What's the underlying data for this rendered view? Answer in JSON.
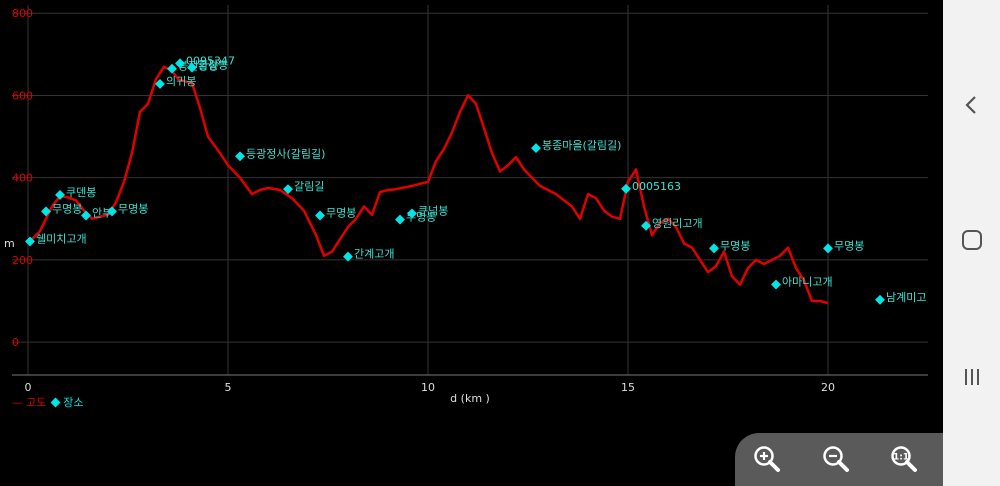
{
  "chart_data": {
    "type": "line",
    "xlabel": "d (km )",
    "ylabel": "m",
    "xlim": [
      0,
      22.5
    ],
    "ylim": [
      -80,
      820
    ],
    "xticks": [
      0,
      5,
      10,
      15,
      20
    ],
    "yticks": [
      0,
      200,
      400,
      600,
      800
    ],
    "grid": true,
    "legend": {
      "placement": "bottom-left",
      "line_label": "고도",
      "point_label": "장소"
    },
    "series": [
      {
        "name": "고도",
        "color": "#e00000",
        "x": [
          0.0,
          0.3,
          0.6,
          0.8,
          1.0,
          1.2,
          1.4,
          1.6,
          1.8,
          2.0,
          2.2,
          2.4,
          2.6,
          2.8,
          3.0,
          3.2,
          3.4,
          3.6,
          3.75,
          3.9,
          4.1,
          4.3,
          4.5,
          4.8,
          5.0,
          5.3,
          5.6,
          5.8,
          6.0,
          6.3,
          6.6,
          6.9,
          7.2,
          7.4,
          7.6,
          7.8,
          8.0,
          8.2,
          8.4,
          8.6,
          8.8,
          9.0,
          9.2,
          9.4,
          9.6,
          9.8,
          10.0,
          10.2,
          10.4,
          10.6,
          10.8,
          11.0,
          11.2,
          11.4,
          11.6,
          11.8,
          12.0,
          12.2,
          12.4,
          12.6,
          12.8,
          13.0,
          13.2,
          13.4,
          13.6,
          13.8,
          14.0,
          14.2,
          14.4,
          14.6,
          14.8,
          15.0,
          15.2,
          15.4,
          15.6,
          15.8,
          16.0,
          16.2,
          16.4,
          16.6,
          16.8,
          17.0,
          17.2,
          17.4,
          17.6,
          17.8,
          18.0,
          18.2,
          18.4,
          18.6,
          18.8,
          19.0,
          19.2,
          19.4,
          19.6,
          19.8,
          20.0
        ],
        "y": [
          240,
          270,
          330,
          355,
          352,
          345,
          320,
          300,
          305,
          310,
          340,
          390,
          460,
          560,
          580,
          640,
          670,
          660,
          640,
          635,
          630,
          570,
          500,
          460,
          430,
          400,
          360,
          370,
          375,
          370,
          350,
          320,
          260,
          210,
          220,
          250,
          280,
          300,
          330,
          310,
          365,
          370,
          372,
          376,
          380,
          385,
          390,
          440,
          470,
          510,
          560,
          600,
          580,
          520,
          460,
          415,
          430,
          450,
          420,
          400,
          380,
          370,
          360,
          345,
          330,
          300,
          360,
          350,
          320,
          305,
          300,
          390,
          420,
          330,
          260,
          290,
          300,
          280,
          240,
          230,
          200,
          170,
          185,
          220,
          160,
          140,
          180,
          200,
          190,
          200,
          210,
          230,
          180,
          150,
          100,
          100,
          95
        ]
      }
    ],
    "points": [
      {
        "label": "쉘미치고개",
        "x": 0.05,
        "y": 245
      },
      {
        "label": "무명봉",
        "x": 0.45,
        "y": 318
      },
      {
        "label": "쿠덴봉",
        "x": 0.8,
        "y": 358
      },
      {
        "label": "안부",
        "x": 1.45,
        "y": 308
      },
      {
        "label": "무명봉",
        "x": 2.1,
        "y": 318
      },
      {
        "label": "의귀봉",
        "x": 3.3,
        "y": 628
      },
      {
        "label": "봉전황봉",
        "x": 3.6,
        "y": 665
      },
      {
        "label": "0095347",
        "x": 3.8,
        "y": 678
      },
      {
        "label": "금강봉",
        "x": 4.1,
        "y": 668
      },
      {
        "label": "등광정사(갈림길)",
        "x": 5.3,
        "y": 452
      },
      {
        "label": "갈림길",
        "x": 6.5,
        "y": 372
      },
      {
        "label": "무명봉",
        "x": 7.3,
        "y": 308
      },
      {
        "label": "간계고개",
        "x": 8.0,
        "y": 208
      },
      {
        "label": "무명봉",
        "x": 9.3,
        "y": 298
      },
      {
        "label": "큰넘봉",
        "x": 9.6,
        "y": 313
      },
      {
        "label": "봉종마을(갈림길)",
        "x": 12.7,
        "y": 472
      },
      {
        "label": "0005163",
        "x": 14.95,
        "y": 373
      },
      {
        "label": "영원리고개",
        "x": 15.45,
        "y": 283
      },
      {
        "label": "무명봉",
        "x": 17.15,
        "y": 228
      },
      {
        "label": "아마니고개",
        "x": 18.7,
        "y": 140
      },
      {
        "label": "무명봉",
        "x": 20.0,
        "y": 228
      },
      {
        "label": "남계미고",
        "x": 21.3,
        "y": 103
      }
    ]
  },
  "zoom": {
    "zoom_in_icon": "zoom-in-icon",
    "zoom_out_icon": "zoom-out-icon",
    "zoom_reset_icon": "zoom-reset-icon"
  },
  "nav": {
    "back_icon": "back-chevron-icon",
    "home_icon": "home-icon",
    "recent_icon": "recent-apps-icon"
  }
}
